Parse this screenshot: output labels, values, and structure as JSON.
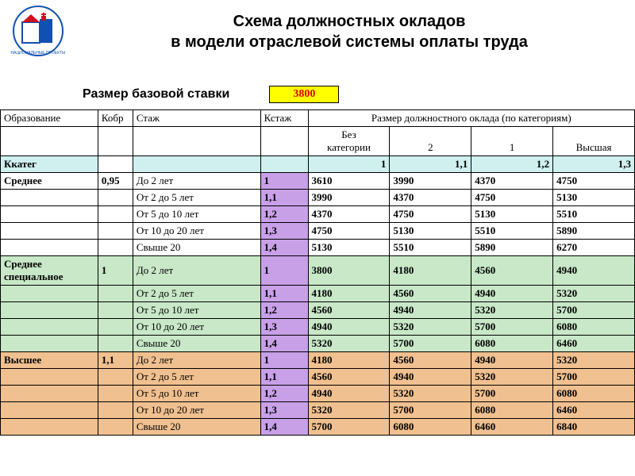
{
  "title_line1": "Схема должностных окладов",
  "title_line2": "в модели отраслевой системы оплаты труда",
  "base_label": "Размер базовой ставки",
  "base_value": "3800",
  "headers": {
    "edu": "Образование",
    "kobr": "Кобр",
    "stazh": "Стаж",
    "kstazh": "Кстаж",
    "salary_span": "Размер должностного оклада (по категориям)",
    "cat_none_l1": "Без",
    "cat_none_l2": "категории",
    "cat2": "2",
    "cat1": "1",
    "cat_high": "Высшая"
  },
  "kkateg": {
    "label": "Ккатег",
    "vals": [
      "1",
      "1,1",
      "1,2",
      "1,3"
    ]
  },
  "colors": {
    "band1": "#ffffff",
    "band2": "#c8e8c8",
    "band3": "#f0c090",
    "kstazh": "#c8a0e8",
    "kkateg": "#d0f0f0"
  },
  "bands": [
    {
      "edu": "Среднее",
      "kobr": "0,95",
      "band_color": "#ffffff",
      "rows": [
        {
          "stazh": "До 2 лет",
          "k": "1",
          "v": [
            "3610",
            "3990",
            "4370",
            "4750"
          ]
        },
        {
          "stazh": "От 2 до 5 лет",
          "k": "1,1",
          "v": [
            "3990",
            "4370",
            "4750",
            "5130"
          ]
        },
        {
          "stazh": "От 5 до 10 лет",
          "k": "1,2",
          "v": [
            "4370",
            "4750",
            "5130",
            "5510"
          ]
        },
        {
          "stazh": "От 10 до 20 лет",
          "k": "1,3",
          "v": [
            "4750",
            "5130",
            "5510",
            "5890"
          ]
        },
        {
          "stazh": "Свыше 20",
          "k": "1,4",
          "v": [
            "5130",
            "5510",
            "5890",
            "6270"
          ]
        }
      ]
    },
    {
      "edu": "Среднее специальное",
      "kobr": "1",
      "band_color": "#c8e8c8",
      "rows": [
        {
          "stazh": "До 2 лет",
          "k": "1",
          "v": [
            "3800",
            "4180",
            "4560",
            "4940"
          ]
        },
        {
          "stazh": "От 2 до 5 лет",
          "k": "1,1",
          "v": [
            "4180",
            "4560",
            "4940",
            "5320"
          ]
        },
        {
          "stazh": "От 5 до 10 лет",
          "k": "1,2",
          "v": [
            "4560",
            "4940",
            "5320",
            "5700"
          ]
        },
        {
          "stazh": "От 10 до 20 лет",
          "k": "1,3",
          "v": [
            "4940",
            "5320",
            "5700",
            "6080"
          ]
        },
        {
          "stazh": "Свыше 20",
          "k": "1,4",
          "v": [
            "5320",
            "5700",
            "6080",
            "6460"
          ]
        }
      ]
    },
    {
      "edu": "Высшее",
      "kobr": "1,1",
      "band_color": "#f0c090",
      "rows": [
        {
          "stazh": "До 2 лет",
          "k": "1",
          "v": [
            "4180",
            "4560",
            "4940",
            "5320"
          ]
        },
        {
          "stazh": "От 2 до 5 лет",
          "k": "1,1",
          "v": [
            "4560",
            "4940",
            "5320",
            "5700"
          ]
        },
        {
          "stazh": "От 5 до 10 лет",
          "k": "1,2",
          "v": [
            "4940",
            "5320",
            "5700",
            "6080"
          ]
        },
        {
          "stazh": "От 10 до 20 лет",
          "k": "1,3",
          "v": [
            "5320",
            "5700",
            "6080",
            "6460"
          ]
        },
        {
          "stazh": "Свыше 20",
          "k": "1,4",
          "v": [
            "5700",
            "6080",
            "6460",
            "6840"
          ]
        }
      ]
    }
  ]
}
